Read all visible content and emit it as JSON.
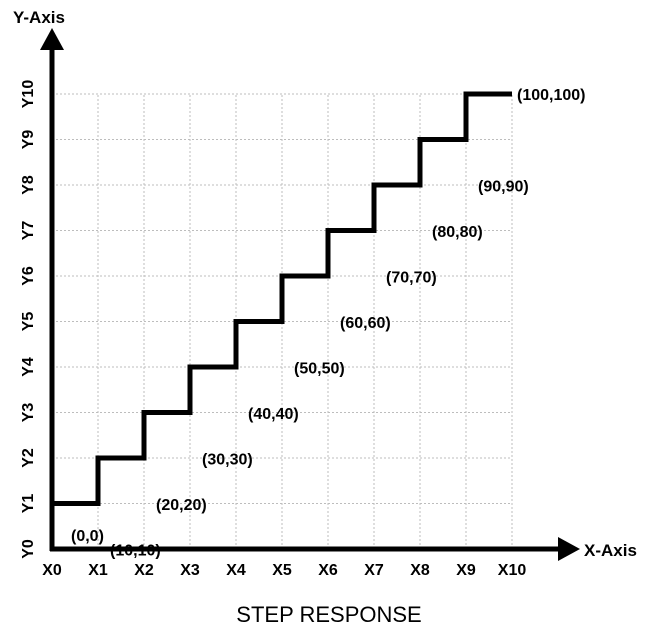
{
  "chart_data": {
    "type": "line",
    "title": "STEP RESPONSE",
    "xlabel": "X-Axis",
    "ylabel": "Y-Axis",
    "x_ticks": [
      "X0",
      "X1",
      "X2",
      "X3",
      "X4",
      "X5",
      "X6",
      "X7",
      "X8",
      "X9",
      "X10"
    ],
    "y_ticks": [
      "Y0",
      "Y1",
      "Y2",
      "Y3",
      "Y4",
      "Y5",
      "Y6",
      "Y7",
      "Y8",
      "Y9",
      "Y10"
    ],
    "xlim": [
      0,
      100
    ],
    "ylim": [
      0,
      100
    ],
    "grid": true,
    "series": [
      {
        "style": "step",
        "points": [
          {
            "x": 0,
            "y": 10,
            "label": "(0,0)"
          },
          {
            "x": 10,
            "y": 20,
            "label": "(10,10)"
          },
          {
            "x": 20,
            "y": 30,
            "label": "(20,20)"
          },
          {
            "x": 30,
            "y": 40,
            "label": "(30,30)"
          },
          {
            "x": 40,
            "y": 50,
            "label": "(40,40)"
          },
          {
            "x": 50,
            "y": 60,
            "label": "(50,50)"
          },
          {
            "x": 60,
            "y": 70,
            "label": "(60,60)"
          },
          {
            "x": 70,
            "y": 80,
            "label": "(70,70)"
          },
          {
            "x": 80,
            "y": 90,
            "label": "(80,80)"
          },
          {
            "x": 90,
            "y": 100,
            "label": "(90,90)"
          },
          {
            "x": 100,
            "y": 100,
            "label": "(100,100)"
          }
        ]
      }
    ]
  }
}
